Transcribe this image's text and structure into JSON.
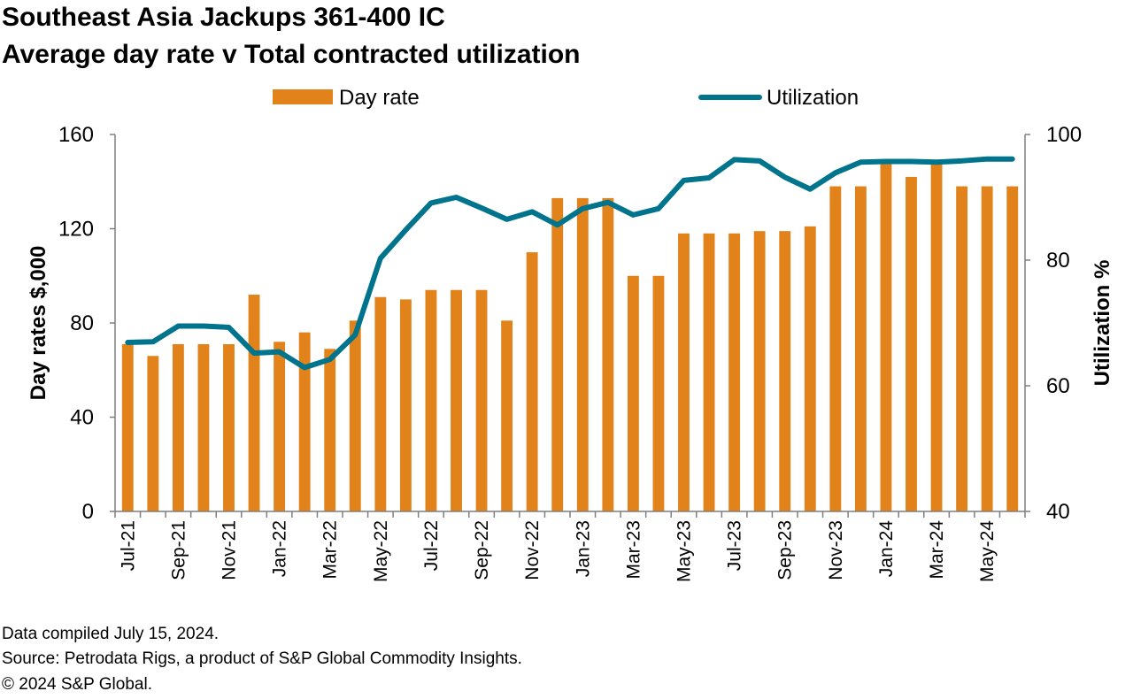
{
  "title_line1": "Southeast Asia Jackups 361-400 IC",
  "title_line2": "Average day rate v Total contracted utilization",
  "footer": {
    "compiled": "Data compiled July 15, 2024.",
    "source": "Source: Petrodata Rigs, a product of S&P Global Commodity Insights.",
    "copyright": "© 2024 S&P Global."
  },
  "colors": {
    "bar": "#E1831A",
    "line": "#00748C",
    "axis": "#7f7f7f"
  },
  "chart_data": {
    "type": "bar",
    "legend_position": "top",
    "grid": false,
    "categories": [
      "Jul-21",
      "Aug-21",
      "Sep-21",
      "Oct-21",
      "Nov-21",
      "Dec-21",
      "Jan-22",
      "Feb-22",
      "Mar-22",
      "Apr-22",
      "May-22",
      "Jun-22",
      "Jul-22",
      "Aug-22",
      "Sep-22",
      "Oct-22",
      "Nov-22",
      "Dec-22",
      "Jan-23",
      "Feb-23",
      "Mar-23",
      "Apr-23",
      "May-23",
      "Jun-23",
      "Jul-23",
      "Aug-23",
      "Sep-23",
      "Oct-23",
      "Nov-23",
      "Dec-23",
      "Jan-24",
      "Feb-24",
      "Mar-24",
      "Apr-24",
      "May-24",
      "Jun-24"
    ],
    "x_tick_labels": [
      "Jul-21",
      "",
      "Sep-21",
      "",
      "Nov-21",
      "",
      "Jan-22",
      "",
      "Mar-22",
      "",
      "May-22",
      "",
      "Jul-22",
      "",
      "Sep-22",
      "",
      "Nov-22",
      "",
      "Jan-23",
      "",
      "Mar-23",
      "",
      "May-23",
      "",
      "Jul-23",
      "",
      "Sep-23",
      "",
      "Nov-23",
      "",
      "Jan-24",
      "",
      "Mar-24",
      "",
      "May-24",
      ""
    ],
    "series": [
      {
        "name": "Day rate",
        "type": "bar",
        "axis": "left",
        "values": [
          71,
          66,
          71,
          71,
          71,
          92,
          72,
          76,
          69,
          81,
          91,
          90,
          94,
          94,
          94,
          81,
          110,
          133,
          133,
          133,
          100,
          100,
          118,
          118,
          118,
          119,
          119,
          121,
          138,
          138,
          149,
          142,
          148,
          138,
          138,
          138
        ]
      },
      {
        "name": "Utilization",
        "type": "line",
        "axis": "right",
        "values": [
          66.9,
          67.0,
          69.5,
          69.5,
          69.3,
          65.2,
          65.4,
          62.9,
          64.2,
          68.1,
          80.3,
          84.8,
          89.1,
          90.0,
          88.3,
          86.5,
          87.7,
          85.6,
          88.2,
          89.2,
          87.2,
          88.2,
          92.7,
          93.1,
          96.0,
          95.8,
          93.2,
          91.3,
          93.9,
          95.6,
          95.7,
          95.7,
          95.6,
          95.8,
          96.1,
          96.1
        ]
      }
    ],
    "ylabel": "Day rates $,000",
    "ylim": [
      0,
      160
    ],
    "y_ticks": [
      0,
      40,
      80,
      120,
      160
    ],
    "y2label": "Utilization %",
    "y2lim": [
      40,
      100
    ],
    "y2_ticks": [
      40,
      60,
      80,
      100
    ]
  }
}
